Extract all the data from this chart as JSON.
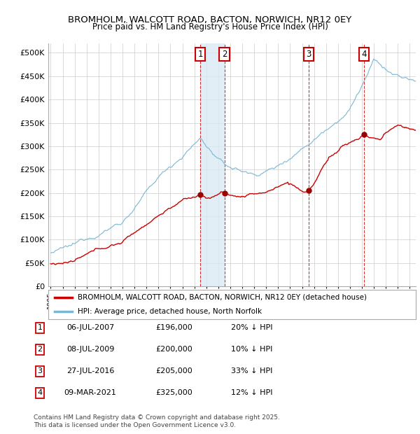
{
  "title1": "BROMHOLM, WALCOTT ROAD, BACTON, NORWICH, NR12 0EY",
  "title2": "Price paid vs. HM Land Registry's House Price Index (HPI)",
  "legend_line1": "BROMHOLM, WALCOTT ROAD, BACTON, NORWICH, NR12 0EY (detached house)",
  "legend_line2": "HPI: Average price, detached house, North Norfolk",
  "hpi_color": "#7ab8d4",
  "price_color": "#cc0000",
  "shade_color": "#daeaf4",
  "footnote1": "Contains HM Land Registry data © Crown copyright and database right 2025.",
  "footnote2": "This data is licensed under the Open Government Licence v3.0.",
  "transactions": [
    {
      "id": 1,
      "date": "06-JUL-2007",
      "price": 196000,
      "pct": "20% ↓ HPI",
      "x": 2007.51
    },
    {
      "id": 2,
      "date": "08-JUL-2009",
      "price": 200000,
      "pct": "10% ↓ HPI",
      "x": 2009.51
    },
    {
      "id": 3,
      "date": "27-JUL-2016",
      "price": 205000,
      "pct": "33% ↓ HPI",
      "x": 2016.56
    },
    {
      "id": 4,
      "date": "09-MAR-2021",
      "price": 325000,
      "pct": "12% ↓ HPI",
      "x": 2021.18
    }
  ],
  "ylim": [
    0,
    520000
  ],
  "xlim_start": 1994.8,
  "xlim_end": 2025.5
}
